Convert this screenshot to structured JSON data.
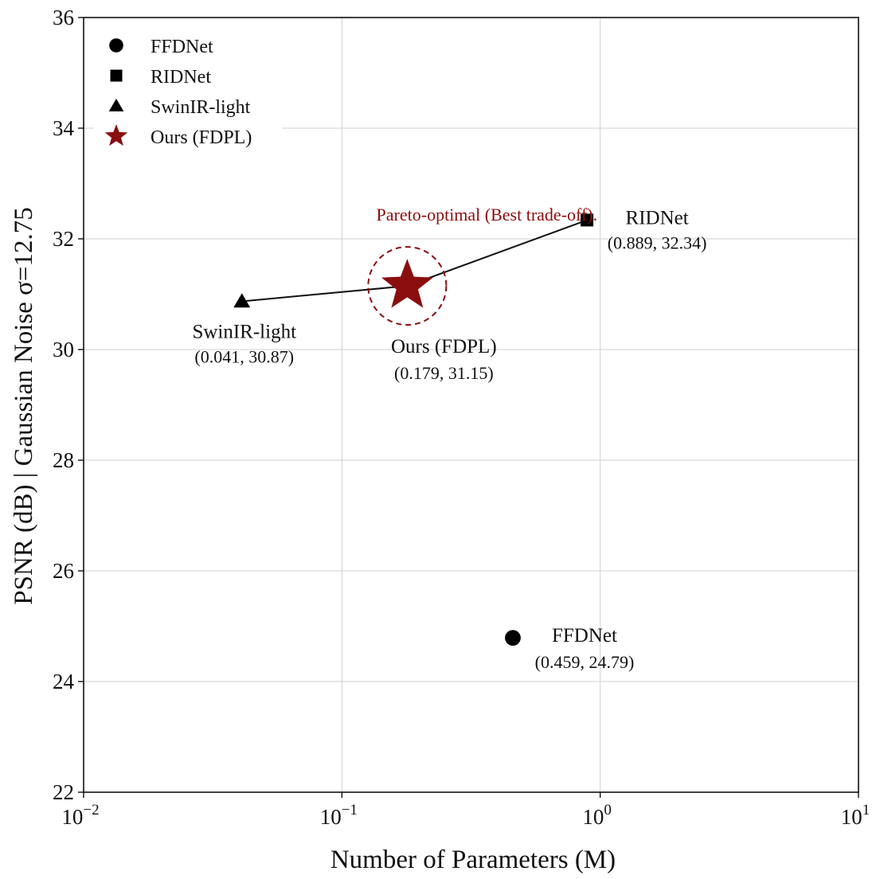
{
  "chart_data": {
    "type": "scatter",
    "title": "",
    "xlabel": "Number of Parameters (M)",
    "ylabel": "PSNR (dB) | Gaussian Noise σ=12.75",
    "xscale": "log",
    "xlim": [
      0.01,
      10
    ],
    "ylim": [
      22,
      36
    ],
    "grid": true,
    "legend_position": "top-left",
    "x_ticks": [
      {
        "base": "10",
        "exp": "−2",
        "value": 0.01
      },
      {
        "base": "10",
        "exp": "−1",
        "value": 0.1
      },
      {
        "base": "10",
        "exp": "0",
        "value": 1
      },
      {
        "base": "10",
        "exp": "1",
        "value": 10
      }
    ],
    "y_ticks": [
      "22",
      "24",
      "26",
      "28",
      "30",
      "32",
      "34",
      "36"
    ],
    "series": [
      {
        "name": "FFDNet",
        "marker": "circle",
        "color": "#000000",
        "x": 0.459,
        "y": 24.79,
        "annotation": "(0.459, 24.79)"
      },
      {
        "name": "RIDNet",
        "marker": "square",
        "color": "#000000",
        "x": 0.889,
        "y": 32.34,
        "annotation": "(0.889, 32.34)"
      },
      {
        "name": "SwinIR-light",
        "marker": "triangle",
        "color": "#000000",
        "x": 0.041,
        "y": 30.87,
        "annotation": "(0.041, 30.87)"
      },
      {
        "name": "Ours (FDPL)",
        "marker": "star",
        "color": "#8b0e0e",
        "x": 0.179,
        "y": 31.15,
        "annotation": "(0.179, 31.15)"
      }
    ],
    "pareto_front": [
      "SwinIR-light",
      "Ours (FDPL)",
      "RIDNet"
    ],
    "highlight_text": "Pareto-optimal (Best trade-off).",
    "highlight_color": "#8b0e0e"
  }
}
